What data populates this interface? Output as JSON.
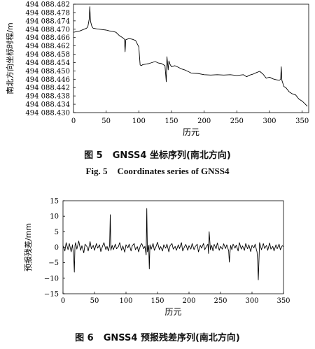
{
  "figures": [
    {
      "caption_zh": {
        "number": "图 5",
        "title": "GNSS4 坐标序列(南北方向)"
      },
      "caption_en": {
        "number": "Fig. 5",
        "title": "Coordinates series of GNSS4"
      }
    },
    {
      "caption_zh": {
        "number": "图 6",
        "title": "GNSS4 预报残差序列(南北方向)"
      }
    }
  ],
  "chart_data": [
    {
      "type": "line",
      "xlabel": "历元",
      "ylabel": "南北方向坐标时程/m",
      "xlim": [
        0,
        360
      ],
      "ylim": [
        494088.43,
        494088.482
      ],
      "x_ticks": [
        "0",
        "50",
        "100",
        "150",
        "200",
        "250",
        "300",
        "350"
      ],
      "y_ticks": [
        "494 088.482",
        "494 088.478",
        "494 088.474",
        "494 088.470",
        "494 088.466",
        "494 088.462",
        "494 088.458",
        "494 088.454",
        "494 088.450",
        "494 088.446",
        "494 088.442",
        "494 088.438",
        "494 088.434",
        "494 088.430"
      ],
      "grid": false,
      "series": [
        {
          "x": [
            0,
            10,
            20,
            22,
            24,
            25,
            26,
            28,
            30,
            35,
            40,
            45,
            50,
            55,
            60,
            65,
            70,
            75,
            78,
            79,
            80,
            85,
            90,
            95,
            100,
            102,
            104,
            106,
            110,
            115,
            120,
            125,
            130,
            135,
            140,
            142,
            143,
            145,
            146,
            148,
            150,
            155,
            160,
            165,
            170,
            175,
            180,
            190,
            200,
            210,
            220,
            230,
            240,
            250,
            260,
            265,
            270,
            275,
            280,
            285,
            290,
            295,
            300,
            305,
            310,
            315,
            317,
            318,
            319,
            320,
            322,
            325,
            330,
            335,
            340,
            345,
            350,
            355,
            358
          ],
          "values": [
            494088.4685,
            494088.4692,
            494088.4705,
            494088.4712,
            494088.4748,
            494088.4808,
            494088.4738,
            494088.4715,
            494088.4705,
            494088.4702,
            494088.47,
            494088.4698,
            494088.4696,
            494088.4692,
            494088.469,
            494088.4685,
            494088.467,
            494088.466,
            494088.4652,
            494088.4592,
            494088.465,
            494088.4655,
            494088.4652,
            494088.4646,
            494088.4615,
            494088.4528,
            494088.4525,
            494088.453,
            494088.4532,
            494088.4535,
            494088.454,
            494088.4545,
            494088.4538,
            494088.4535,
            494088.4525,
            494088.4448,
            494088.4568,
            494088.4505,
            494088.4548,
            494088.453,
            494088.452,
            494088.4525,
            494088.4518,
            494088.451,
            494088.4505,
            494088.4498,
            494088.449,
            494088.4488,
            494088.4482,
            494088.448,
            494088.4482,
            494088.448,
            494088.4482,
            494088.4478,
            494088.4482,
            494088.4472,
            494088.448,
            494088.4485,
            494088.4492,
            494088.4498,
            494088.4485,
            494088.4465,
            494088.447,
            494088.4462,
            494088.4458,
            494088.4455,
            494088.446,
            494088.452,
            494088.4455,
            494088.4445,
            494088.4425,
            494088.442,
            494088.44,
            494088.439,
            494088.4385,
            494088.4365,
            494088.4355,
            494088.434,
            494088.433
          ]
        }
      ]
    },
    {
      "type": "line",
      "xlabel": "历元",
      "ylabel": "预报残差/mm",
      "xlim": [
        0,
        350
      ],
      "ylim": [
        -15,
        15
      ],
      "x_ticks": [
        "0",
        "50",
        "100",
        "150",
        "200",
        "250",
        "300",
        "350"
      ],
      "y_ticks": [
        "15",
        "10",
        "5",
        "0",
        "−5",
        "−10",
        "−15"
      ],
      "grid": false,
      "series": [
        {
          "x": [
            0,
            3,
            5,
            8,
            10,
            13,
            15,
            17,
            18,
            19,
            20,
            22,
            25,
            28,
            30,
            33,
            35,
            38,
            40,
            43,
            45,
            48,
            50,
            53,
            55,
            58,
            60,
            63,
            65,
            68,
            70,
            72,
            74,
            75,
            76,
            78,
            80,
            83,
            85,
            88,
            90,
            93,
            95,
            98,
            100,
            103,
            105,
            108,
            110,
            113,
            115,
            118,
            120,
            123,
            125,
            128,
            130,
            132,
            133,
            134,
            136,
            137,
            138,
            140,
            143,
            145,
            148,
            150,
            153,
            155,
            158,
            160,
            163,
            165,
            168,
            170,
            173,
            175,
            178,
            180,
            183,
            185,
            188,
            190,
            193,
            195,
            198,
            200,
            203,
            205,
            208,
            210,
            213,
            215,
            218,
            220,
            223,
            225,
            228,
            230,
            231,
            232,
            234,
            236,
            238,
            240,
            243,
            245,
            248,
            250,
            253,
            255,
            258,
            260,
            263,
            264,
            266,
            268,
            270,
            273,
            275,
            278,
            280,
            283,
            285,
            288,
            290,
            293,
            295,
            298,
            300,
            303,
            305,
            307,
            308,
            309,
            310,
            312,
            315,
            318,
            320,
            323,
            325,
            328,
            330,
            333,
            335,
            338,
            340,
            343,
            345,
            348,
            350
          ],
          "values": [
            0.5,
            -1.2,
            1.5,
            -0.8,
            1.2,
            -1.5,
            0.8,
            -3.0,
            -8.0,
            0.5,
            1.5,
            -0.6,
            2.0,
            -1.0,
            0.5,
            -1.8,
            1.0,
            0.2,
            -1.2,
            1.8,
            -0.5,
            0.6,
            -1.0,
            1.2,
            -0.3,
            0.8,
            -1.4,
            0.5,
            1.5,
            -0.8,
            0.3,
            -1.2,
            0.5,
            10.5,
            -1.0,
            0.6,
            -0.8,
            1.0,
            -0.5,
            0.2,
            1.5,
            -1.0,
            0.4,
            -1.6,
            0.8,
            -0.2,
            1.0,
            -1.2,
            0.5,
            1.2,
            -0.8,
            0.2,
            -1.5,
            0.6,
            1.2,
            -0.5,
            0.3,
            -2.5,
            12.5,
            -1.5,
            0.6,
            -7.0,
            0.8,
            -0.6,
            1.2,
            -1.0,
            0.4,
            1.6,
            -0.8,
            0.2,
            -1.2,
            0.8,
            -0.3,
            1.0,
            -1.5,
            0.5,
            1.2,
            -0.6,
            0.3,
            -1.0,
            0.8,
            -0.4,
            1.5,
            -1.2,
            0.2,
            0.9,
            -1.0,
            0.5,
            -0.6,
            1.2,
            -0.8,
            0.2,
            1.0,
            -1.5,
            0.6,
            -0.3,
            1.2,
            -0.8,
            0.4,
            1.0,
            -2.0,
            5.0,
            -0.8,
            0.6,
            -1.2,
            0.9,
            -0.5,
            1.4,
            -1.0,
            0.3,
            -0.6,
            1.1,
            -0.4,
            0.8,
            -1.2,
            -4.8,
            0.6,
            -0.8,
            1.0,
            -0.3,
            0.7,
            -1.2,
            1.5,
            -0.6,
            0.4,
            -1.0,
            1.2,
            -0.5,
            0.8,
            -1.4,
            0.6,
            -0.2,
            1.0,
            -0.8,
            -1.5,
            -4.5,
            -10.5,
            1.5,
            -0.8,
            1.2,
            -0.4,
            0.6,
            -1.0,
            1.4,
            -0.6,
            0.3,
            -1.2,
            0.8,
            -0.5,
            1.0,
            -0.8,
            0.5,
            0.2
          ]
        }
      ]
    }
  ]
}
